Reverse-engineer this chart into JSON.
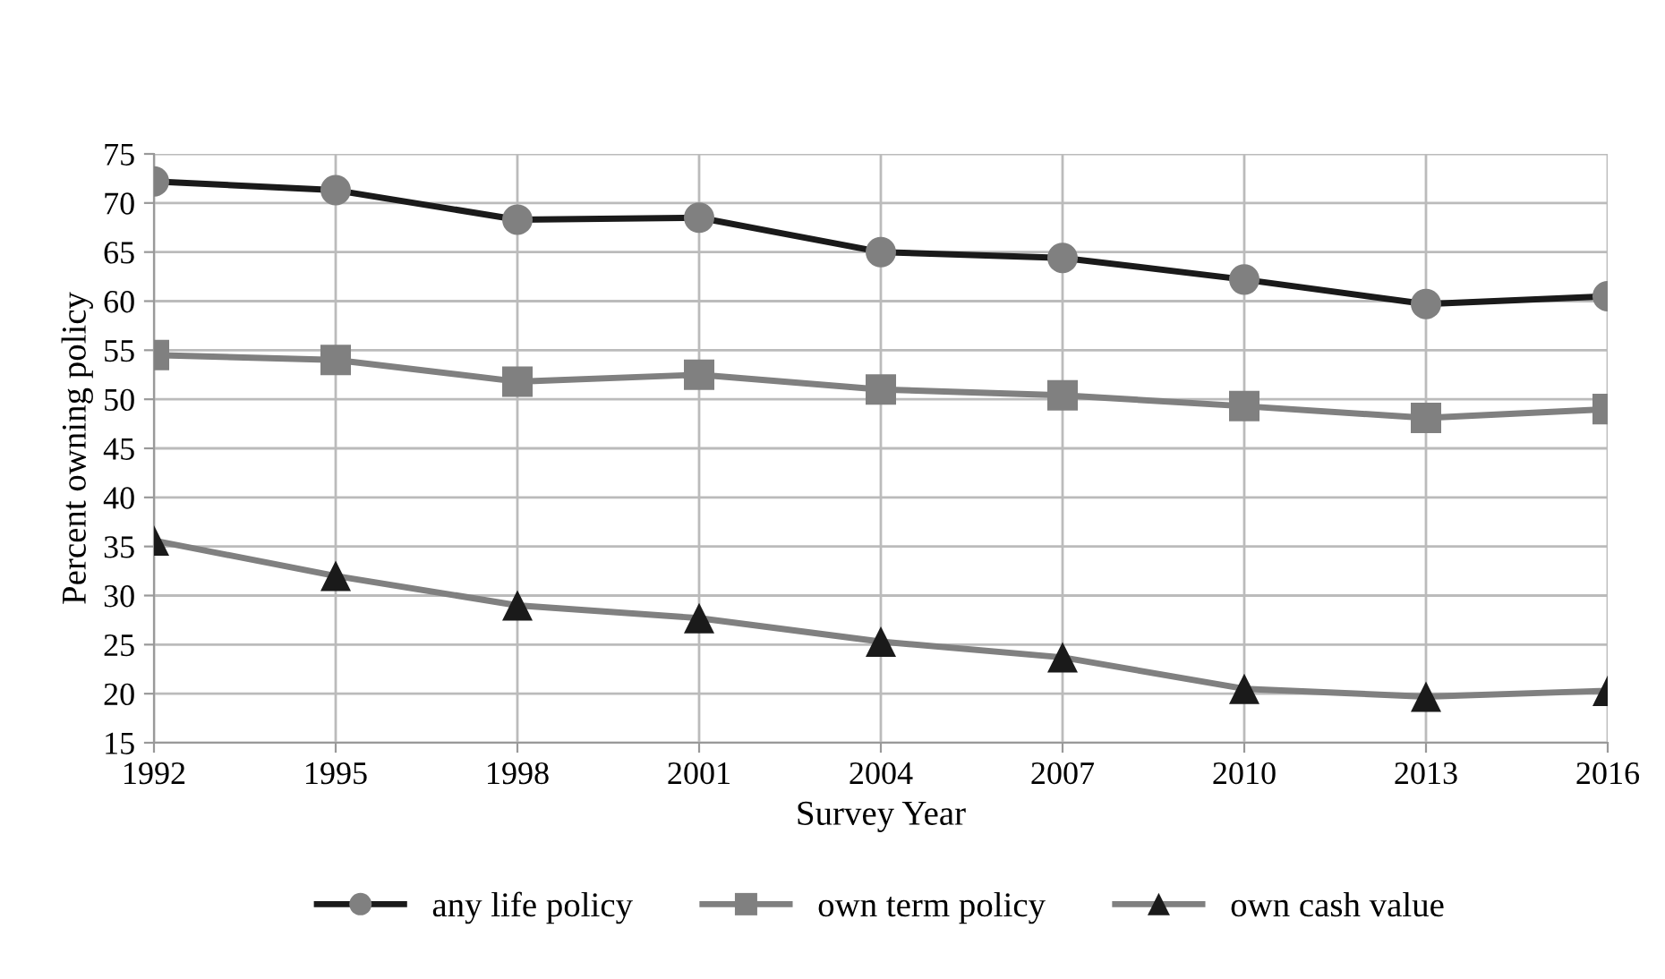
{
  "chart_data": {
    "type": "line",
    "x": [
      1992,
      1995,
      1998,
      2001,
      2004,
      2007,
      2010,
      2013,
      2016
    ],
    "xlabel": "Survey Year",
    "ylabel": "Percent owning policy",
    "xlim": [
      1992,
      2016
    ],
    "xticks": [
      1992,
      1995,
      1998,
      2001,
      2004,
      2007,
      2010,
      2013,
      2016
    ],
    "ylim": [
      15,
      75
    ],
    "yticks": [
      15,
      20,
      25,
      30,
      35,
      40,
      45,
      50,
      55,
      60,
      65,
      70,
      75
    ],
    "grid": true,
    "legend": "bottom",
    "line_style": "solid",
    "series": [
      {
        "name": "any life policy",
        "color": "#1a1a1a",
        "marker": "circle",
        "colors": [
          "#808080",
          "#808080",
          "#808080",
          "#808080",
          "#808080",
          "#808080",
          "#808080",
          "#808080",
          "#808080"
        ],
        "values": [
          72.2,
          71.3,
          68.3,
          68.5,
          65.0,
          64.4,
          62.2,
          59.7,
          60.5
        ]
      },
      {
        "name": "own term policy",
        "color": "#808080",
        "marker": "square",
        "colors": [
          "#808080",
          "#808080",
          "#808080",
          "#808080",
          "#808080",
          "#808080",
          "#808080",
          "#808080",
          "#808080"
        ],
        "values": [
          54.5,
          54.0,
          51.8,
          52.5,
          51.0,
          50.4,
          49.3,
          48.1,
          49.0
        ]
      },
      {
        "name": "own cash value",
        "color": "#808080",
        "marker": "triangle",
        "colors": [
          "#1a1a1a",
          "#1a1a1a",
          "#1a1a1a",
          "#1a1a1a",
          "#1a1a1a",
          "#1a1a1a",
          "#1a1a1a",
          "#1a1a1a",
          "#1a1a1a"
        ],
        "values": [
          35.6,
          32.0,
          29.0,
          27.7,
          25.3,
          23.7,
          20.5,
          19.7,
          20.3
        ]
      }
    ]
  }
}
